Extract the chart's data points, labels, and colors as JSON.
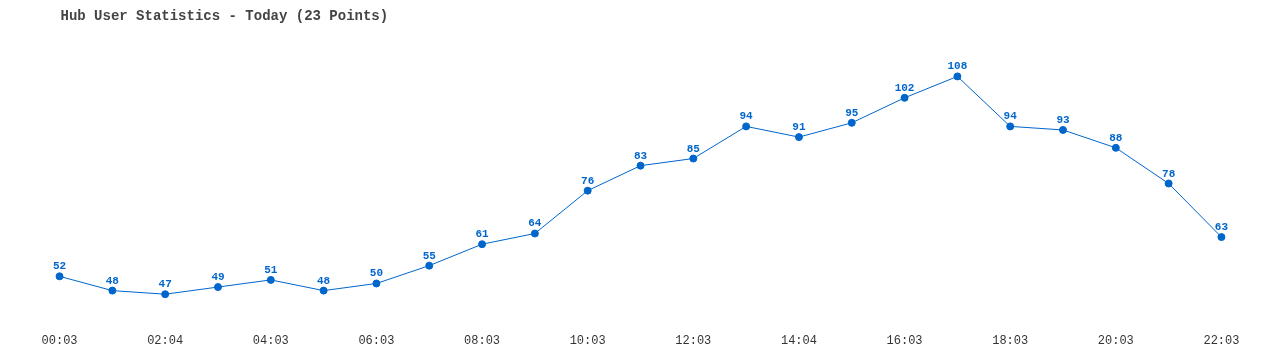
{
  "chart_data": {
    "type": "line",
    "title": "Hub User Statistics - Today (23 Points)",
    "categories": [
      "00:03",
      null,
      "02:04",
      null,
      "04:03",
      null,
      "06:03",
      null,
      "08:03",
      null,
      "10:03",
      null,
      "12:03",
      null,
      "14:04",
      null,
      "16:03",
      null,
      "18:03",
      null,
      "20:03",
      null,
      "22:03"
    ],
    "series": [
      {
        "color": "#0066cc",
        "values": [
          52,
          48,
          47,
          49,
          51,
          48,
          50,
          55,
          61,
          64,
          76,
          83,
          85,
          94,
          91,
          95,
          102,
          108,
          94,
          93,
          88,
          78,
          63
        ]
      }
    ],
    "data_labels": true,
    "marker": "circle",
    "grid": false
  }
}
